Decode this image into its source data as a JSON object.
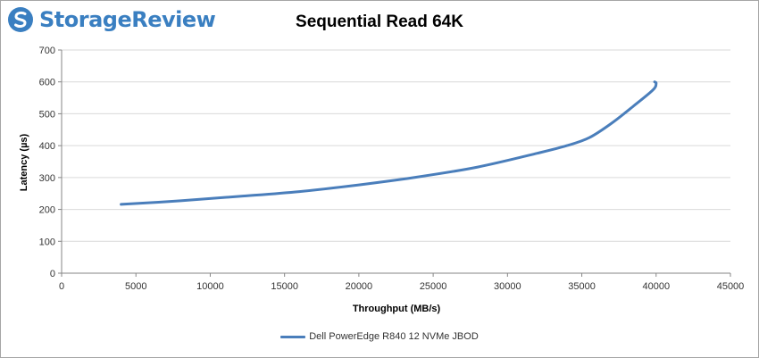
{
  "branding": {
    "logo_text": "StorageReview",
    "logo_icon": "storagereview-logo-icon",
    "logo_color": "#3a7fc1"
  },
  "chart_data": {
    "type": "line",
    "title": "Sequential Read 64K",
    "xlabel": "Throughput (MB/s)",
    "ylabel": "Latency (µs)",
    "xlim": [
      0,
      45000
    ],
    "ylim": [
      0,
      700
    ],
    "xticks": [
      0,
      5000,
      10000,
      15000,
      20000,
      25000,
      30000,
      35000,
      40000,
      45000
    ],
    "yticks": [
      0,
      100,
      200,
      300,
      400,
      500,
      600,
      700
    ],
    "grid": "horizontal",
    "legend_position": "bottom",
    "series": [
      {
        "name": "Dell PowerEdge R840 12 NVMe JBOD",
        "color": "#4a7ebb",
        "x": [
          4000,
          8000,
          12000,
          16000,
          20000,
          24000,
          28000,
          32000,
          34000,
          35500,
          37000,
          38500,
          39800,
          40000,
          39900
        ],
        "y": [
          216,
          227,
          241,
          256,
          277,
          302,
          333,
          376,
          400,
          425,
          470,
          525,
          575,
          595,
          600
        ]
      }
    ]
  }
}
